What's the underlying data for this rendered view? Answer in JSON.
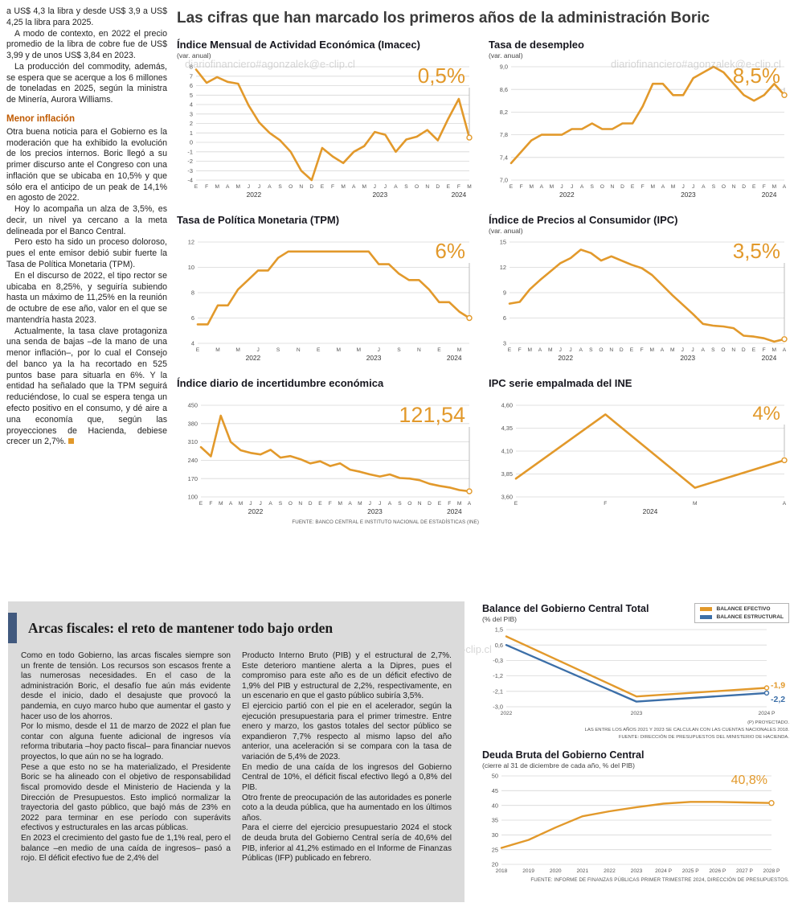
{
  "headline": "Las cifras que han marcado los primeros años de la administración Boric",
  "watermark": "diariofinanciero#agonzalek@e-clip.cl",
  "colors": {
    "accent": "#e2992b",
    "blue": "#3c6fa8",
    "subhead": "#c05a00",
    "box_bar": "#41597e"
  },
  "leftcol": {
    "p0": "a US$ 4,3 la libra y desde US$ 3,9 a US$ 4,25 la libra para 2025.",
    "p1": "A modo de contexto, en 2022 el precio promedio de la libra de cobre fue de US$ 3,99 y de unos US$ 3,84 en 2023.",
    "p2": "La producción del commodity, además, se espera que se acerque a los 6 millones de toneladas en 2025, según la ministra de Minería, Aurora Williams.",
    "subhead": "Menor inflación",
    "p3": "Otra buena noticia para el Gobierno es la moderación que ha exhibido la evolución de los precios internos. Boric llegó a su primer discurso ante el Congreso con una inflación que se ubicaba en 10,5% y que sólo era el anticipo de un peak de 14,1% en agosto de 2022.",
    "p4": "Hoy lo acompaña un alza de 3,5%, es decir, un nivel ya cercano a la meta delineada por el Banco Central.",
    "p5": "Pero esto ha sido un proceso doloroso, pues el ente emisor debió subir fuerte la Tasa de Política Monetaria (TPM).",
    "p6": "En el discurso de 2022, el tipo rector se ubicaba en 8,25%, y seguiría subiendo hasta un máximo de 11,25% en la reunión de octubre de ese año, valor en el que se mantendría hasta 2023.",
    "p7": "Actualmente, la tasa clave protagoniza una senda de bajas –de la mano de una menor inflación–, por lo cual el Consejo del banco ya la ha recortado en 525 puntos base para situarla en 6%. Y la entidad ha señalado que la TPM seguirá reduciéndose, lo cual se espera tenga un efecto positivo en el consumo, y dé aire a una economía que, según las proyecciones de Hacienda, debiese crecer un 2,7%."
  },
  "bottom": {
    "title": "Arcas fiscales: el reto de mantener todo bajo orden",
    "col1": [
      "Como en todo Gobierno, las arcas fiscales siempre son un frente de tensión. Los recursos son escasos frente a las numerosas necesidades. En el caso de la administración Boric, el desafío fue aún más evidente desde el inicio, dado el desajuste que provocó la pandemia, en cuyo marco hubo que aumentar el gasto y hacer uso de los ahorros.",
      "Por lo mismo, desde el 11 de marzo de 2022 el plan fue contar con alguna fuente adicional de ingresos vía reforma tributaria –hoy pacto fiscal– para financiar nuevos proyectos, lo que aún no se ha logrado.",
      "Pese a que esto no se ha materializado, el Presidente Boric se ha alineado con el objetivo de responsabilidad fiscal promovido desde el Ministerio de Hacienda y la Dirección de Presupuestos. Esto implicó normalizar la trayectoria del gasto público, que bajó más de 23% en 2022 para terminar en ese período con superávits efectivos y estructurales en las arcas públicas.",
      "En 2023 el crecimiento del gasto fue de 1,1% real, pero el balance –en medio de una caída de ingresos– pasó a rojo. El déficit efectivo fue de 2,4% del"
    ],
    "col2": [
      "Producto Interno Bruto (PIB) y el estructural de 2,7%. Este deterioro mantiene alerta a la Dipres, pues el compromiso para este año es de un déficit efectivo de 1,9% del PIB y estructural de 2,2%, respectivamente, en un escenario en que el gasto público subiría 3,5%.",
      "El ejercicio partió con el pie en el acelerador, según la ejecución presupuestaria para el primer trimestre. Entre enero y marzo, los gastos totales del sector público se expandieron 7,7% respecto al mismo lapso del año anterior, una aceleración si se compara con la tasa de variación de 5,4% de 2023.",
      "En medio de una caída de los ingresos del Gobierno Central de 10%, el déficit fiscal efectivo llegó a 0,8% del PIB.",
      "Otro frente de preocupación de las autoridades es ponerle coto a la deuda pública, que ha aumentado en los últimos años.",
      "Para el cierre del ejercicio presupuestario 2024 el stock de deuda bruta del Gobierno Central sería de 40,6% del PIB, inferior al 41,2% estimado en el Informe de Finanzas Públicas (IFP) publicado en febrero."
    ]
  },
  "chart_data": [
    {
      "type": "line",
      "title": "Índice Mensual de Actividad Económica (Imacec)",
      "subtitle": "(var. anual)",
      "ml": 24,
      "ymin": -4,
      "ymax": 8,
      "yticks": [
        {
          "v": 8,
          "l": "8"
        },
        {
          "v": 7,
          "l": "7"
        },
        {
          "v": 6,
          "l": "6"
        },
        {
          "v": 5,
          "l": "5"
        },
        {
          "v": 4,
          "l": "4"
        },
        {
          "v": 3,
          "l": "3"
        },
        {
          "v": 2,
          "l": "2"
        },
        {
          "v": 1,
          "l": "1"
        },
        {
          "v": 0,
          "l": "0"
        },
        {
          "v": -1,
          "l": "-1"
        },
        {
          "v": -2,
          "l": "-2"
        },
        {
          "v": -3,
          "l": "-3"
        },
        {
          "v": -4,
          "l": "-4"
        }
      ],
      "categories": [
        "E",
        "F",
        "M",
        "A",
        "M",
        "J",
        "J",
        "A",
        "S",
        "O",
        "N",
        "D",
        "E",
        "F",
        "M",
        "A",
        "M",
        "J",
        "J",
        "A",
        "S",
        "O",
        "N",
        "D",
        "E",
        "F",
        "M"
      ],
      "year_groups": [
        {
          "label": "2022",
          "from": 0,
          "to": 11
        },
        {
          "label": "2023",
          "from": 12,
          "to": 23
        },
        {
          "label": "2024",
          "from": 24,
          "to": 26
        }
      ],
      "series": [
        {
          "name": "Imacec",
          "color": "#e2992b",
          "values": [
            7.7,
            6.3,
            6.9,
            6.4,
            6.2,
            3.9,
            2.1,
            1.0,
            0.2,
            -1.0,
            -3.0,
            -4.0,
            -0.6,
            -1.5,
            -2.2,
            -1.0,
            -0.4,
            1.1,
            0.8,
            -1.0,
            0.3,
            0.6,
            1.3,
            0.2,
            2.5,
            4.6,
            0.5
          ]
        }
      ],
      "big": {
        "text": "0,5%",
        "size": 26
      }
    },
    {
      "type": "line",
      "title": "Tasa de desempleo",
      "subtitle": "(var. anual)",
      "ml": 28,
      "ymin": 7.0,
      "ymax": 9.0,
      "yticks": [
        {
          "v": 9.0,
          "l": "9,0"
        },
        {
          "v": 8.6,
          "l": "8,6"
        },
        {
          "v": 8.2,
          "l": "8,2"
        },
        {
          "v": 7.8,
          "l": "7,8"
        },
        {
          "v": 7.4,
          "l": "7,4"
        },
        {
          "v": 7.0,
          "l": "7,0"
        }
      ],
      "categories": [
        "E",
        "F",
        "M",
        "A",
        "M",
        "J",
        "J",
        "A",
        "S",
        "O",
        "N",
        "D",
        "E",
        "F",
        "M",
        "A",
        "M",
        "J",
        "J",
        "A",
        "S",
        "O",
        "N",
        "D",
        "E",
        "F",
        "M",
        "A"
      ],
      "year_groups": [
        {
          "label": "2022",
          "from": 0,
          "to": 11
        },
        {
          "label": "2023",
          "from": 12,
          "to": 23
        },
        {
          "label": "2024",
          "from": 24,
          "to": 27
        }
      ],
      "series": [
        {
          "name": "Desempleo",
          "color": "#e2992b",
          "values": [
            7.3,
            7.5,
            7.7,
            7.8,
            7.8,
            7.8,
            7.9,
            7.9,
            8.0,
            7.9,
            7.9,
            8.0,
            8.0,
            8.3,
            8.7,
            8.7,
            8.5,
            8.5,
            8.8,
            8.9,
            9.0,
            8.9,
            8.7,
            8.5,
            8.4,
            8.5,
            8.7,
            8.5
          ]
        }
      ],
      "big": {
        "text": "8,5%",
        "size": 26
      }
    },
    {
      "type": "line",
      "title": "Tasa de Política Monetaria (TPM)",
      "subtitle": "",
      "ml": 26,
      "ymin": 4,
      "ymax": 12,
      "label_every": 2,
      "yticks": [
        {
          "v": 12,
          "l": "12"
        },
        {
          "v": 10,
          "l": "10"
        },
        {
          "v": 8,
          "l": "8"
        },
        {
          "v": 6,
          "l": "6"
        },
        {
          "v": 4,
          "l": "4"
        }
      ],
      "categories": [
        "E",
        "F",
        "M",
        "A",
        "M",
        "J",
        "J",
        "A",
        "S",
        "O",
        "N",
        "D",
        "E",
        "F",
        "M",
        "A",
        "M",
        "J",
        "J",
        "A",
        "S",
        "O",
        "N",
        "D",
        "E",
        "F",
        "M",
        "A"
      ],
      "year_groups": [
        {
          "label": "2022",
          "from": 0,
          "to": 11
        },
        {
          "label": "2023",
          "from": 12,
          "to": 23
        },
        {
          "label": "2024",
          "from": 24,
          "to": 27
        }
      ],
      "series": [
        {
          "name": "TPM",
          "color": "#e2992b",
          "values": [
            5.5,
            5.5,
            7.0,
            7.0,
            8.25,
            9.0,
            9.75,
            9.75,
            10.75,
            11.25,
            11.25,
            11.25,
            11.25,
            11.25,
            11.25,
            11.25,
            11.25,
            11.25,
            10.25,
            10.25,
            9.5,
            9.0,
            9.0,
            8.25,
            7.25,
            7.25,
            6.5,
            6.0
          ]
        }
      ],
      "big": {
        "text": "6%",
        "size": 26
      }
    },
    {
      "type": "line",
      "title": "Índice de Precios al Consumidor (IPC)",
      "subtitle": "(var. anual)",
      "ml": 26,
      "ymin": 3,
      "ymax": 15,
      "yticks": [
        {
          "v": 15,
          "l": "15"
        },
        {
          "v": 12,
          "l": "12"
        },
        {
          "v": 9,
          "l": "9"
        },
        {
          "v": 6,
          "l": "6"
        },
        {
          "v": 3,
          "l": "3"
        }
      ],
      "categories": [
        "E",
        "F",
        "M",
        "A",
        "M",
        "J",
        "J",
        "A",
        "S",
        "O",
        "N",
        "D",
        "E",
        "F",
        "M",
        "A",
        "M",
        "J",
        "J",
        "A",
        "S",
        "O",
        "N",
        "D",
        "E",
        "F",
        "M",
        "A"
      ],
      "year_groups": [
        {
          "label": "2022",
          "from": 0,
          "to": 11
        },
        {
          "label": "2023",
          "from": 12,
          "to": 23
        },
        {
          "label": "2024",
          "from": 24,
          "to": 27
        }
      ],
      "series": [
        {
          "name": "IPC",
          "color": "#e2992b",
          "values": [
            7.7,
            7.9,
            9.4,
            10.5,
            11.5,
            12.5,
            13.1,
            14.1,
            13.7,
            12.8,
            13.3,
            12.8,
            12.3,
            11.9,
            11.1,
            9.9,
            8.7,
            7.6,
            6.5,
            5.3,
            5.1,
            5.0,
            4.8,
            3.9,
            3.8,
            3.6,
            3.2,
            3.5
          ]
        }
      ],
      "big": {
        "text": "3,5%",
        "size": 26
      }
    },
    {
      "type": "line",
      "title": "Índice diario de incertidumbre económica",
      "subtitle": "",
      "ml": 30,
      "ymin": 100,
      "ymax": 450,
      "yticks": [
        {
          "v": 450,
          "l": "450"
        },
        {
          "v": 380,
          "l": "380"
        },
        {
          "v": 310,
          "l": "310"
        },
        {
          "v": 240,
          "l": "240"
        },
        {
          "v": 170,
          "l": "170"
        },
        {
          "v": 100,
          "l": "100"
        }
      ],
      "categories": [
        "E",
        "F",
        "M",
        "A",
        "M",
        "J",
        "J",
        "A",
        "S",
        "O",
        "N",
        "D",
        "E",
        "F",
        "M",
        "A",
        "M",
        "J",
        "J",
        "A",
        "S",
        "O",
        "N",
        "D",
        "E",
        "F",
        "M",
        "A"
      ],
      "year_groups": [
        {
          "label": "2022",
          "from": 0,
          "to": 11
        },
        {
          "label": "2023",
          "from": 12,
          "to": 23
        },
        {
          "label": "2024",
          "from": 24,
          "to": 27
        }
      ],
      "series": [
        {
          "name": "Incertidumbre",
          "color": "#e2992b",
          "values": [
            290,
            255,
            410,
            310,
            278,
            268,
            262,
            280,
            250,
            256,
            244,
            228,
            236,
            218,
            228,
            204,
            196,
            186,
            178,
            186,
            172,
            170,
            164,
            150,
            142,
            136,
            126,
            121.54
          ]
        }
      ],
      "big": {
        "text": "121,54",
        "size": 27
      },
      "source": "FUENTE: BANCO CENTRAL E INSTITUTO NACIONAL DE ESTADÍSTICAS (INE)"
    },
    {
      "type": "line",
      "title": "IPC serie empalmada del INE",
      "subtitle": "",
      "ml": 34,
      "ymin": 3.6,
      "ymax": 4.6,
      "yticks": [
        {
          "v": 4.6,
          "l": "4,60"
        },
        {
          "v": 4.35,
          "l": "4,35"
        },
        {
          "v": 4.1,
          "l": "4,10"
        },
        {
          "v": 3.85,
          "l": "3,85"
        },
        {
          "v": 3.6,
          "l": "3,60"
        }
      ],
      "categories": [
        "E",
        "F",
        "M",
        "A"
      ],
      "year_groups": [
        {
          "label": "2024",
          "from": 0,
          "to": 3
        }
      ],
      "series": [
        {
          "name": "IPC INE",
          "color": "#e2992b",
          "values": [
            3.8,
            4.5,
            3.7,
            4.0
          ]
        }
      ],
      "big": {
        "text": "4%",
        "size": 24
      }
    },
    {
      "type": "line",
      "title": "Balance del Gobierno Central Total",
      "subtitle": "(% del PIB)",
      "ml": 30,
      "mr": 26,
      "mb": 14,
      "ymin": -3.0,
      "ymax": 1.5,
      "yticks": [
        {
          "v": 1.5,
          "l": "1,5"
        },
        {
          "v": 0.6,
          "l": "0,6"
        },
        {
          "v": -0.3,
          "l": "-0,3"
        },
        {
          "v": -1.2,
          "l": "-1,2"
        },
        {
          "v": -2.1,
          "l": "-2,1"
        },
        {
          "v": -3.0,
          "l": "-3,0"
        }
      ],
      "categories": [
        "2022",
        "2023",
        "2024 P"
      ],
      "legend": [
        {
          "label": "BALANCE EFECTIVO"
        },
        {
          "label": "BALANCE ESTRUCTURAL"
        }
      ],
      "series": [
        {
          "name": "Balance efectivo",
          "color": "#e2992b",
          "width": 2.4,
          "r": 2.5,
          "end_label": "-1,9",
          "end_dy": -3,
          "values": [
            1.1,
            -2.4,
            -1.9
          ]
        },
        {
          "name": "Balance estructural",
          "color": "#3c6fa8",
          "width": 2.4,
          "r": 2.5,
          "end_label": "-2,2",
          "end_dy": 8,
          "values": [
            0.6,
            -2.7,
            -2.2
          ]
        }
      ],
      "notes": [
        "(P) PROYECTADO.",
        "LAS ENTRE LOS AÑOS 2021 Y 2023 SE CALCULAN CON LAS CUENTAS NACIONALES 2018.",
        "FUENTE: DIRECCIÓN DE PRESUPUESTOS DEL MINISTERIO DE HACIENDA."
      ]
    },
    {
      "type": "line",
      "title": "Deuda Bruta del Gobierno Central",
      "subtitle": "(cierre al 31 de diciembre de cada año, % del PIB)",
      "ml": 24,
      "mr": 20,
      "mb": 14,
      "ymin": 20,
      "ymax": 50,
      "yticks": [
        {
          "v": 50,
          "l": "50"
        },
        {
          "v": 45,
          "l": "45"
        },
        {
          "v": 40,
          "l": "40"
        },
        {
          "v": 35,
          "l": "35"
        },
        {
          "v": 30,
          "l": "30"
        },
        {
          "v": 25,
          "l": "25"
        },
        {
          "v": 20,
          "l": "20"
        }
      ],
      "categories": [
        "2018",
        "2019",
        "2020",
        "2021",
        "2022",
        "2023",
        "2024 P",
        "2025 P",
        "2026 P",
        "2027 P",
        "2028 P"
      ],
      "series": [
        {
          "name": "Deuda bruta",
          "color": "#e2992b",
          "width": 2.4,
          "values": [
            25.6,
            28.3,
            32.5,
            36.3,
            38.0,
            39.4,
            40.6,
            41.2,
            41.2,
            41.0,
            40.8
          ]
        }
      ],
      "big": {
        "text": "40,8%",
        "size": 16,
        "drop": false
      },
      "note": "FUENTE: INFORME DE FINANZAS PÚBLICAS PRIMER TRIMESTRE 2024, DIRECCIÓN DE PRESUPUESTOS."
    }
  ]
}
